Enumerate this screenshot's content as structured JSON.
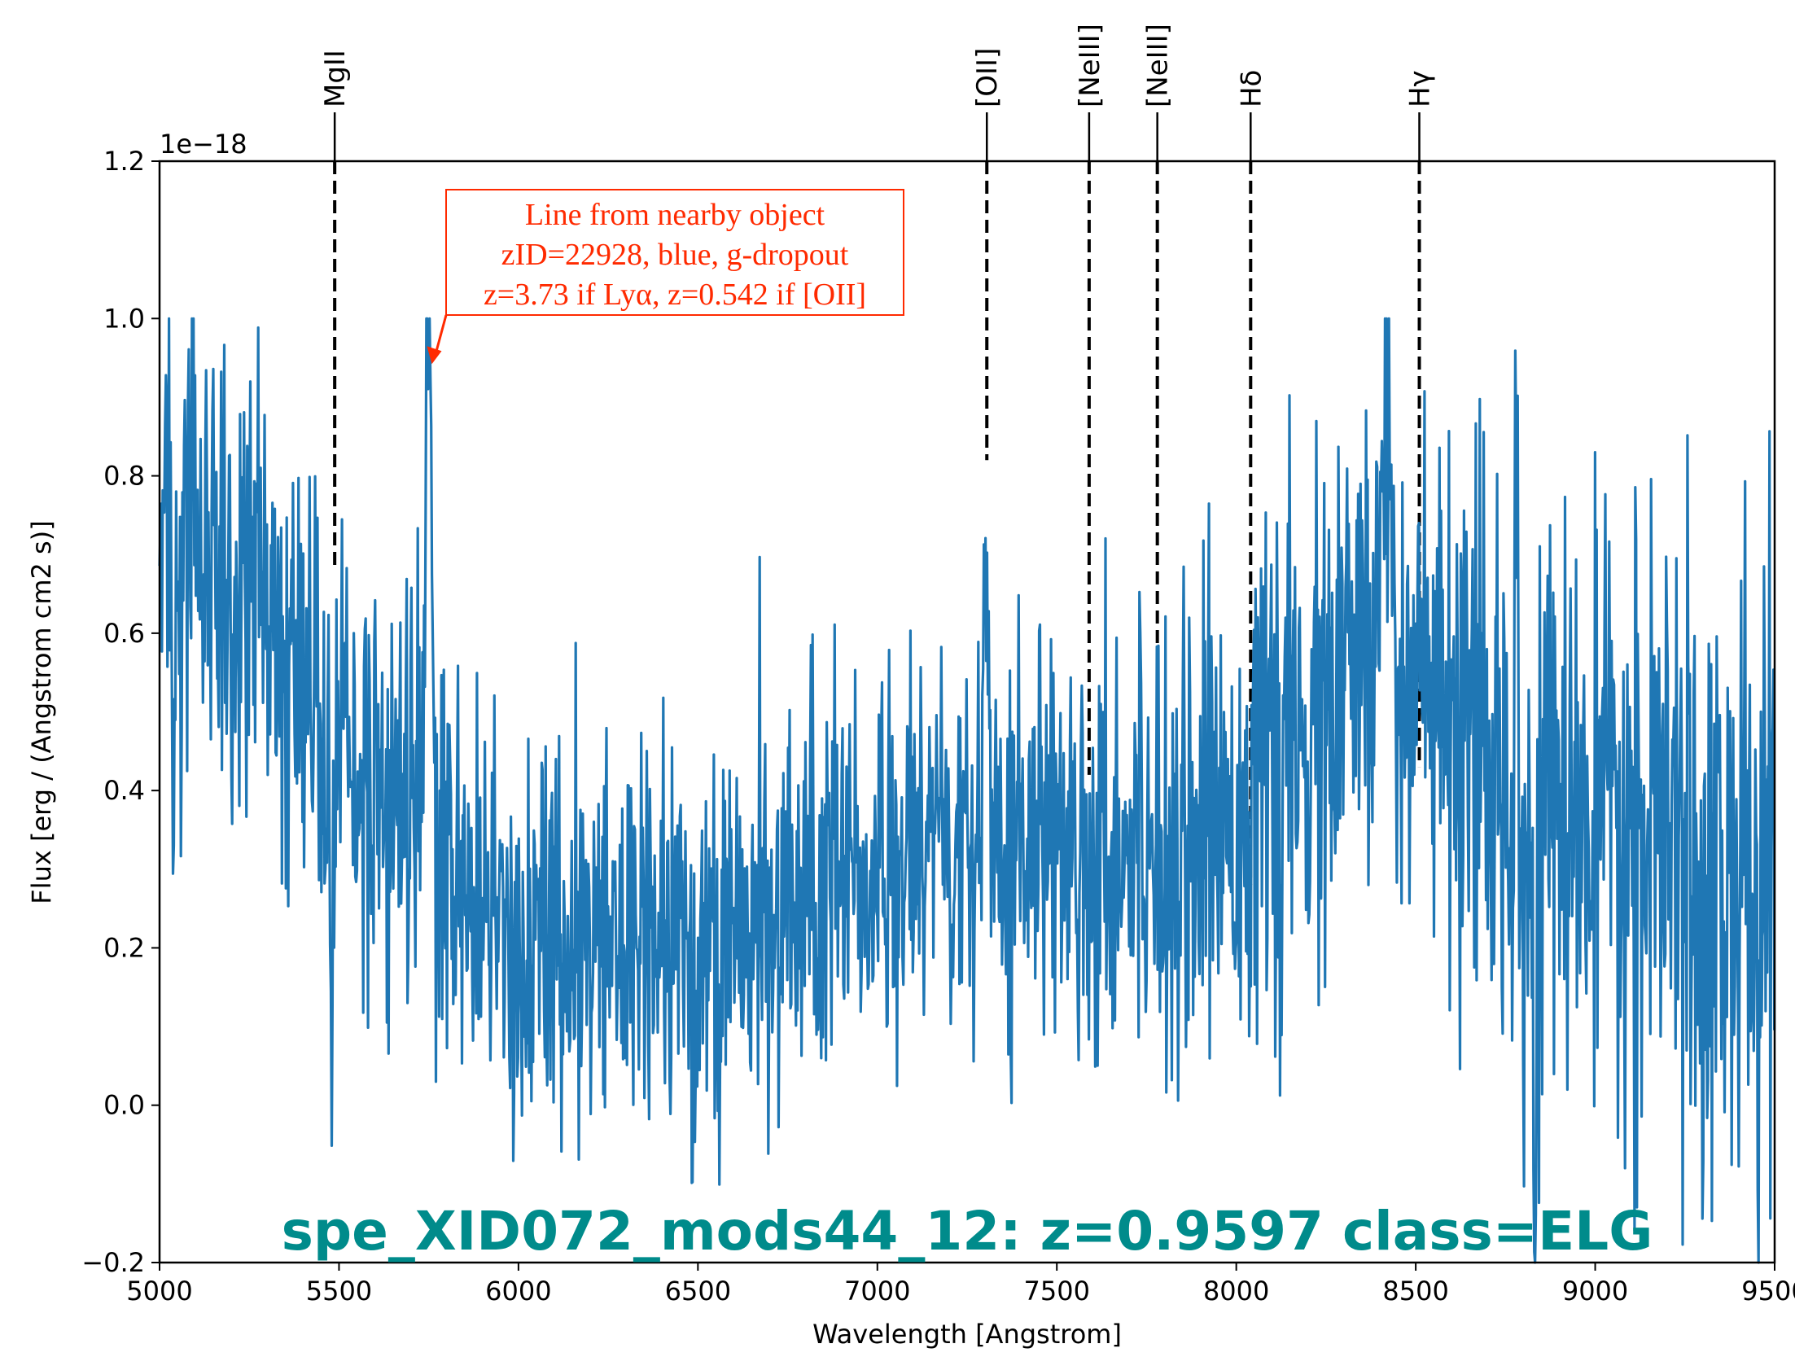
{
  "chart_data": {
    "type": "line",
    "xlabel": "Wavelength [Angstrom]",
    "ylabel": "Flux [erg / (Angstrom cm2 s)]",
    "y_offset_text": "1e−18",
    "xlim": [
      5000,
      9500
    ],
    "ylim": [
      -0.2,
      1.2
    ],
    "x_ticks": [
      5000,
      5500,
      6000,
      6500,
      7000,
      7500,
      8000,
      8500,
      9000,
      9500
    ],
    "y_ticks": [
      -0.2,
      0.0,
      0.2,
      0.4,
      0.6,
      0.8,
      1.0,
      1.2
    ],
    "x_tick_labels": [
      "5000",
      "5500",
      "6000",
      "6500",
      "7000",
      "7500",
      "8000",
      "8500",
      "9000",
      "9500"
    ],
    "y_tick_labels": [
      "−0.2",
      "0.0",
      "0.2",
      "0.4",
      "0.6",
      "0.8",
      "1.0",
      "1.2"
    ],
    "series_color": "#1f77b4",
    "grid": false,
    "spectrum": {
      "seed": 22928,
      "continuum": [
        [
          5000,
          0.72
        ],
        [
          5150,
          0.68
        ],
        [
          5300,
          0.6
        ],
        [
          5450,
          0.5
        ],
        [
          5600,
          0.4
        ],
        [
          5800,
          0.3
        ],
        [
          6000,
          0.22
        ],
        [
          6200,
          0.2
        ],
        [
          6400,
          0.2
        ],
        [
          6600,
          0.22
        ],
        [
          6800,
          0.26
        ],
        [
          7000,
          0.3
        ],
        [
          7200,
          0.34
        ],
        [
          7400,
          0.36
        ],
        [
          7600,
          0.33
        ],
        [
          7800,
          0.34
        ],
        [
          8000,
          0.38
        ],
        [
          8200,
          0.45
        ],
        [
          8400,
          0.6
        ],
        [
          8500,
          0.55
        ],
        [
          8600,
          0.45
        ],
        [
          8800,
          0.38
        ],
        [
          9000,
          0.35
        ],
        [
          9200,
          0.32
        ],
        [
          9500,
          0.25
        ]
      ],
      "noise": [
        [
          5000,
          0.16
        ],
        [
          5500,
          0.15
        ],
        [
          6000,
          0.13
        ],
        [
          6500,
          0.12
        ],
        [
          7000,
          0.12
        ],
        [
          7500,
          0.13
        ],
        [
          8000,
          0.15
        ],
        [
          8500,
          0.17
        ],
        [
          9000,
          0.17
        ],
        [
          9500,
          0.22
        ]
      ],
      "features": [
        {
          "x": 5745,
          "amp": 0.6,
          "sigma": 6
        },
        {
          "x": 5755,
          "amp": 0.45,
          "sigma": 5
        },
        {
          "x": 7305,
          "amp": 0.45,
          "sigma": 7
        },
        {
          "x": 8420,
          "amp": 0.3,
          "sigma": 12
        },
        {
          "x": 8780,
          "amp": 0.55,
          "sigma": 4
        },
        {
          "x": 8830,
          "amp": -0.6,
          "sigma": 4
        },
        {
          "x": 6485,
          "amp": -0.3,
          "sigma": 4
        },
        {
          "x": 5040,
          "amp": -0.4,
          "sigma": 4
        },
        {
          "x": 5480,
          "amp": -0.35,
          "sigma": 4
        }
      ],
      "clip": [
        -0.2,
        1.0
      ]
    },
    "emission_lines": [
      {
        "label": "MgII",
        "x": 5488,
        "y_bottom": 0.68
      },
      {
        "label": "[OII]",
        "x": 7305,
        "y_bottom": 0.82
      },
      {
        "label": "[NeIII]",
        "x": 7590,
        "y_bottom": 0.42
      },
      {
        "label": "[NeIII]",
        "x": 7780,
        "y_bottom": 0.36
      },
      {
        "label": "Hδ",
        "x": 8040,
        "y_bottom": 0.28
      },
      {
        "label": "Hγ",
        "x": 8510,
        "y_bottom": 0.43
      }
    ],
    "annotation": {
      "lines": [
        "Line from nearby object",
        "zID=22928, blue, g-dropout",
        "z=3.73 if Lyα, z=0.542 if [OII]"
      ],
      "color": "#ff2a00",
      "arrow_target": [
        5745,
        0.94
      ]
    },
    "title": "spe_XID072_mods44_12: z=0.9597 class=ELG",
    "title_color": "#008b8b"
  }
}
